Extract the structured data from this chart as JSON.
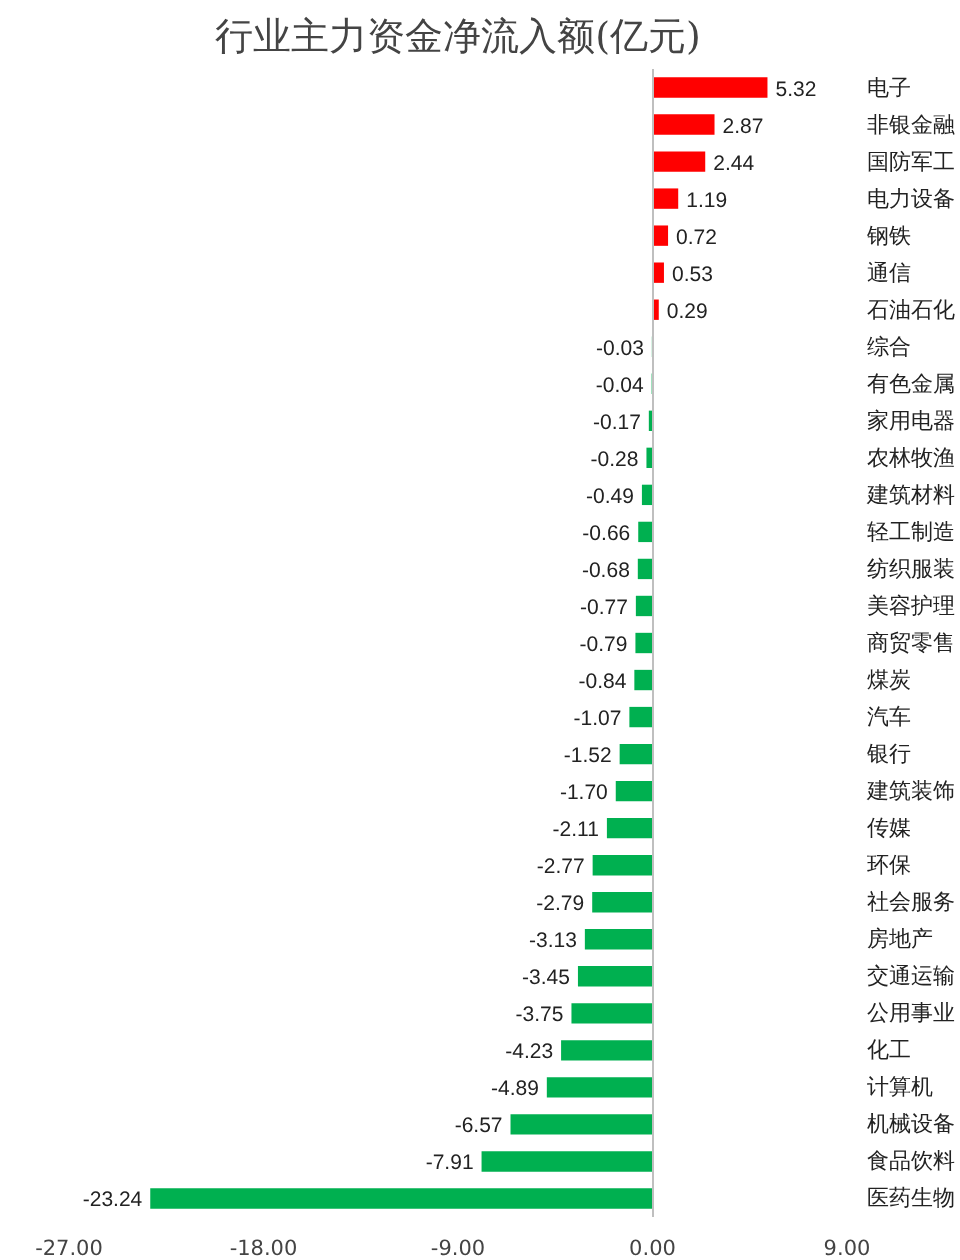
{
  "chart_data": {
    "type": "bar",
    "orientation": "horizontal",
    "title": "行业主力资金净流入额(亿元)",
    "categories": [
      "电子",
      "非银金融",
      "国防军工",
      "电力设备",
      "钢铁",
      "通信",
      "石油石化",
      "综合",
      "有色金属",
      "家用电器",
      "农林牧渔",
      "建筑材料",
      "轻工制造",
      "纺织服装",
      "美容护理",
      "商贸零售",
      "煤炭",
      "汽车",
      "银行",
      "建筑装饰",
      "传媒",
      "环保",
      "社会服务",
      "房地产",
      "交通运输",
      "公用事业",
      "化工",
      "计算机",
      "机械设备",
      "食品饮料",
      "医药生物"
    ],
    "values": [
      5.32,
      2.87,
      2.44,
      1.19,
      0.72,
      0.53,
      0.29,
      -0.03,
      -0.04,
      -0.17,
      -0.28,
      -0.49,
      -0.66,
      -0.68,
      -0.77,
      -0.79,
      -0.84,
      -1.07,
      -1.52,
      -1.7,
      -2.11,
      -2.77,
      -2.79,
      -3.13,
      -3.45,
      -3.75,
      -4.23,
      -4.89,
      -6.57,
      -7.91,
      -23.24
    ],
    "colors": [
      "#ff0000",
      "#ff0000",
      "#ff0000",
      "#ff0000",
      "#ff0000",
      "#ff0000",
      "#ff0000",
      "#00b050",
      "#00b050",
      "#00b050",
      "#00b050",
      "#00b050",
      "#00b050",
      "#00b050",
      "#00b050",
      "#00b050",
      "#00b050",
      "#00b050",
      "#00b050",
      "#00b050",
      "#00b050",
      "#00b050",
      "#00b050",
      "#00b050",
      "#00b050",
      "#00b050",
      "#00b050",
      "#00b050",
      "#00b050",
      "#00b050",
      "#00b050"
    ],
    "xlim": [
      -27,
      9
    ],
    "xticks": [
      {
        "value": -27,
        "label": "-27.00"
      },
      {
        "value": -18,
        "label": "-18.00"
      },
      {
        "value": -9,
        "label": "-9.00"
      },
      {
        "value": 0,
        "label": "0.00"
      },
      {
        "value": 9,
        "label": "9.00"
      }
    ],
    "value_labels": [
      "5.32",
      "2.87",
      "2.44",
      "1.19",
      "0.72",
      "0.53",
      "0.29",
      "-0.03",
      "-0.04",
      "-0.17",
      "-0.28",
      "-0.49",
      "-0.66",
      "-0.68",
      "-0.77",
      "-0.79",
      "-0.84",
      "-1.07",
      "-1.52",
      "-1.70",
      "-2.11",
      "-2.77",
      "-2.79",
      "-3.13",
      "-3.45",
      "-3.75",
      "-4.23",
      "-4.89",
      "-6.57",
      "-7.91",
      "-23.24"
    ]
  }
}
